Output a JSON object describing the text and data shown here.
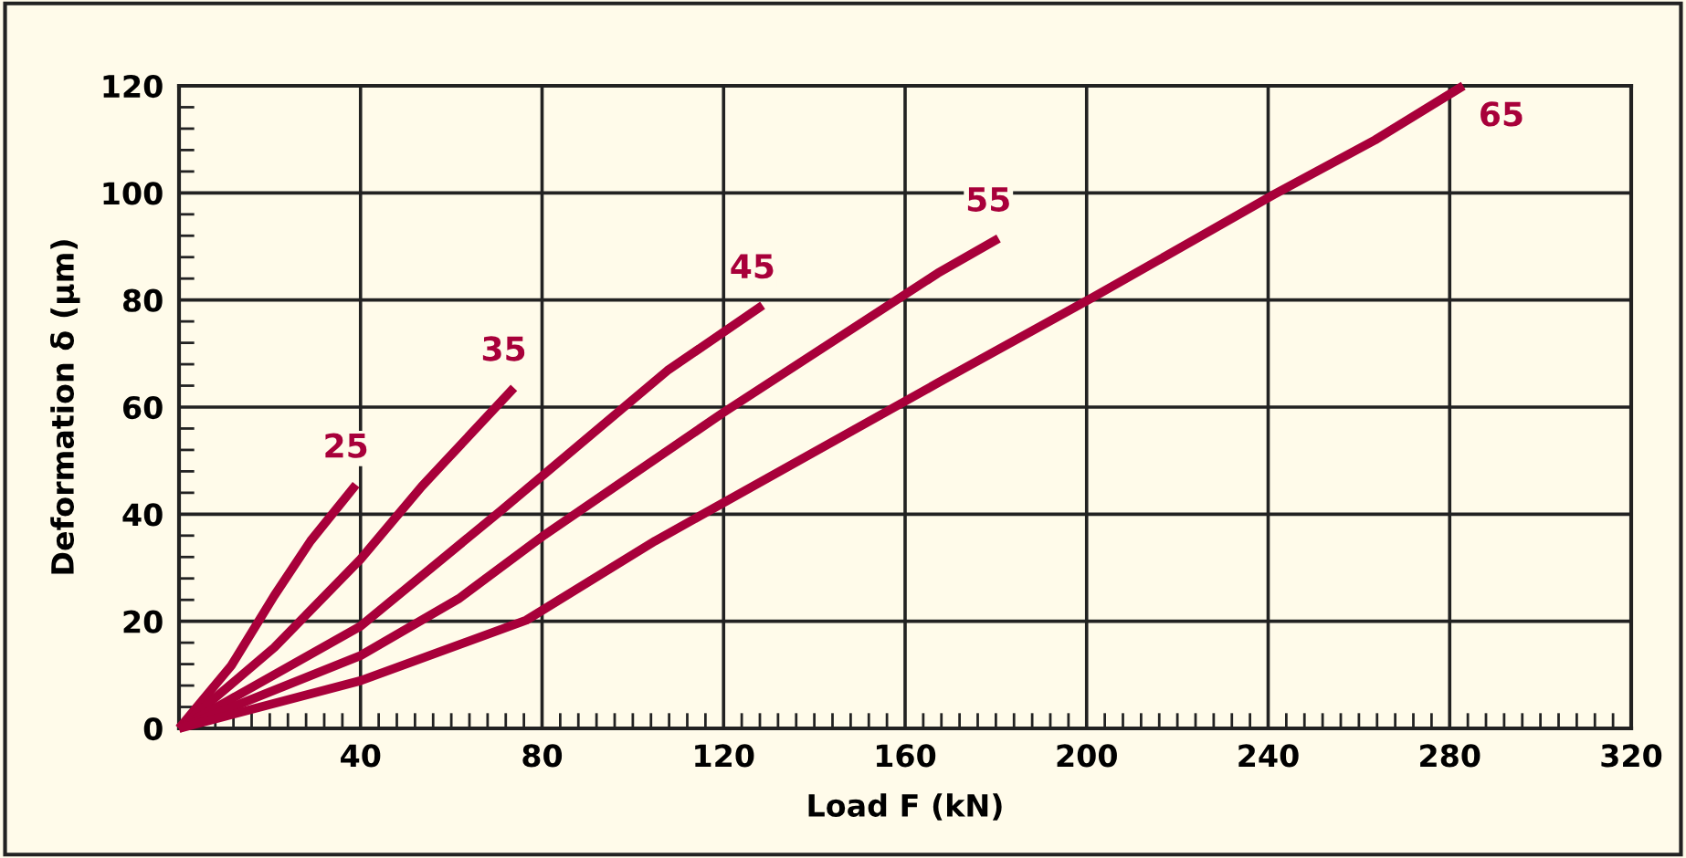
{
  "chart_data": {
    "type": "line",
    "xlabel": "Load F (kN)",
    "ylabel": "Deformation δ (µm)",
    "xlim": [
      0,
      320
    ],
    "ylim": [
      0,
      120
    ],
    "xticks": [
      {
        "value": 0,
        "label": null
      },
      40,
      80,
      120,
      160,
      200,
      240,
      280,
      320
    ],
    "yticks": [
      0,
      20,
      40,
      60,
      80,
      100,
      120
    ],
    "grid": true,
    "legend": false,
    "marker": "none",
    "line_style": "solid",
    "series": [
      {
        "name": "25",
        "color": "#a8003a",
        "x": [
          0,
          11.5,
          21,
          29,
          39
        ],
        "values": [
          0,
          11.7,
          24.8,
          35,
          45.5
        ]
      },
      {
        "name": "35",
        "color": "#a8003a",
        "x": [
          0,
          21,
          40,
          53.5,
          73.8
        ],
        "values": [
          0,
          15.1,
          31.6,
          45.2,
          63.6
        ]
      },
      {
        "name": "45",
        "color": "#a8003a",
        "x": [
          0,
          40,
          71,
          107.6,
          128.6
        ],
        "values": [
          0,
          19.1,
          40.7,
          66.8,
          79
        ]
      },
      {
        "name": "55",
        "color": "#a8003a",
        "x": [
          0,
          40,
          61.6,
          80.5,
          119.8,
          167.2,
          180.6
        ],
        "values": [
          0,
          13.6,
          24.2,
          36.1,
          58.9,
          85,
          91.5
        ]
      },
      {
        "name": "65",
        "color": "#a8003a",
        "x": [
          0,
          40,
          76.5,
          104.9,
          167.2,
          201.2,
          241.3,
          263.6,
          283
        ],
        "values": [
          0,
          8.9,
          20.2,
          35,
          64.5,
          80.4,
          99.7,
          109.9,
          120
        ]
      }
    ]
  }
}
